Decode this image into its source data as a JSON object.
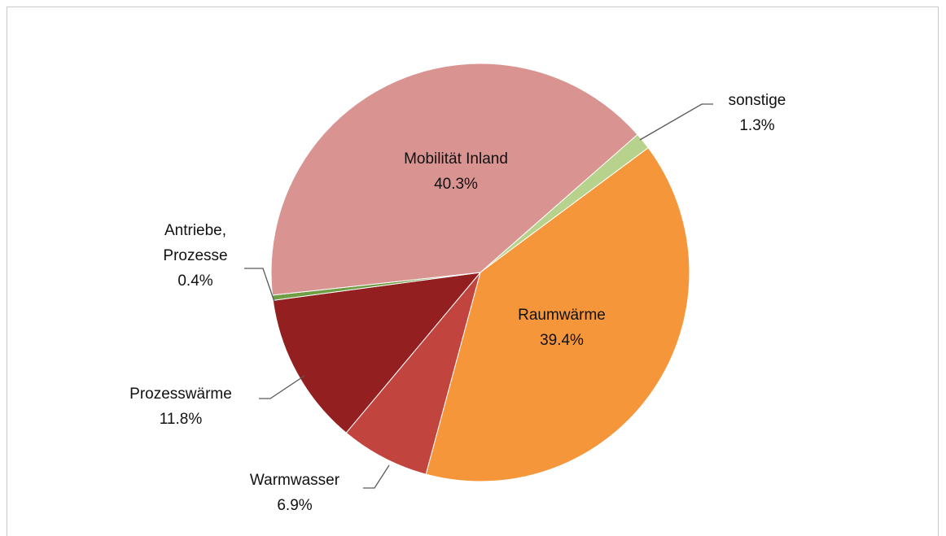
{
  "chart_data": {
    "type": "pie",
    "categories": [
      "sonstige",
      "Raumwärme",
      "Warmwasser",
      "Prozesswärme",
      "Antriebe, Prozesse",
      "Mobilität Inland"
    ],
    "values": [
      1.3,
      39.4,
      6.9,
      11.8,
      0.4,
      40.3
    ],
    "value_labels": [
      "1.3%",
      "39.4%",
      "6.9%",
      "11.8%",
      "0.4%",
      "40.3%"
    ],
    "colors": [
      "#b7d28c",
      "#f5963a",
      "#c1443f",
      "#941f20",
      "#6f9e45",
      "#d99391"
    ]
  }
}
